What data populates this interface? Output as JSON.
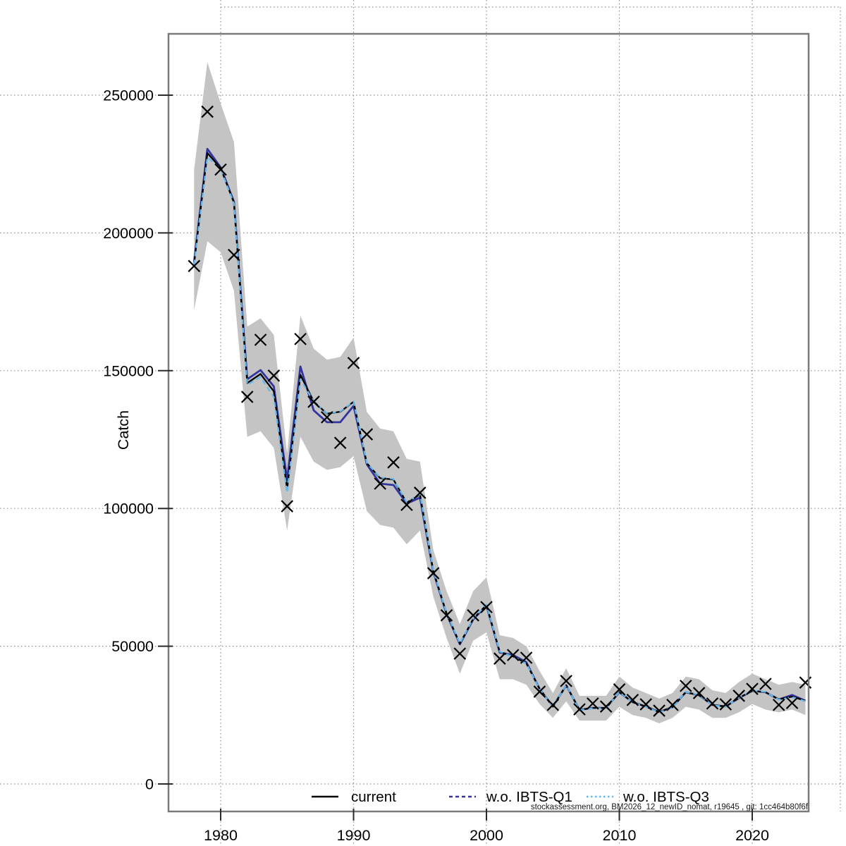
{
  "figure": {
    "background": "#ffffff"
  },
  "footer": {
    "text": "stockassessment.org, BM2026_12_newID_nomat, r19645 , git: 1cc464b80f6f"
  },
  "chart_data": {
    "type": "line",
    "title": "",
    "xlabel": "",
    "ylabel": "Catch",
    "grid": "dotted",
    "legend_position": "bottom-inside",
    "x_tick_labels": [
      "1980",
      "1990",
      "2000",
      "2010",
      "2020"
    ],
    "x_tick_years": [
      1980,
      1990,
      2000,
      2010,
      2020
    ],
    "y_tick_labels": [
      "0",
      "50000",
      "100000",
      "150000",
      "200000",
      "250000"
    ],
    "y_tick_values": [
      0,
      50000,
      100000,
      150000,
      200000,
      250000
    ],
    "ylim": [
      0,
      262000
    ],
    "xlim": [
      1976,
      2026
    ],
    "years": [
      1978,
      1979,
      1980,
      1981,
      1982,
      1983,
      1984,
      1985,
      1986,
      1987,
      1988,
      1989,
      1990,
      1991,
      1992,
      1993,
      1994,
      1995,
      1996,
      1997,
      1998,
      1999,
      2000,
      2001,
      2002,
      2003,
      2004,
      2005,
      2006,
      2007,
      2008,
      2009,
      2010,
      2011,
      2012,
      2013,
      2014,
      2015,
      2016,
      2017,
      2018,
      2019,
      2020,
      2021,
      2022,
      2023,
      2024
    ],
    "observed_marker": "x-cross",
    "observed": [
      188000,
      244000,
      223000,
      192000,
      140500,
      161200,
      148200,
      100800,
      161500,
      138700,
      133100,
      123800,
      152800,
      126900,
      109000,
      116700,
      101300,
      105700,
      76500,
      61200,
      47300,
      61200,
      64200,
      45500,
      46800,
      45800,
      33500,
      28700,
      37400,
      27100,
      29200,
      28100,
      34300,
      30500,
      28900,
      26600,
      28700,
      35600,
      33000,
      29200,
      28900,
      32000,
      34500,
      36300,
      28700,
      29400,
      36800
    ],
    "series": [
      {
        "name": "current",
        "color": "#000000",
        "style": "solid",
        "values": [
          189000,
          229000,
          223500,
          211000,
          145500,
          148800,
          142500,
          107000,
          148500,
          138800,
          134400,
          135100,
          138700,
          116400,
          111000,
          110500,
          102100,
          105000,
          77300,
          61900,
          50900,
          59900,
          65000,
          47900,
          46300,
          43800,
          34500,
          28100,
          35800,
          26900,
          27600,
          27600,
          33300,
          29700,
          28100,
          26100,
          27900,
          33300,
          32200,
          28700,
          28100,
          31200,
          33800,
          33300,
          30700,
          31700,
          30200
        ]
      },
      {
        "name": "w.o. IBTS-Q1",
        "color": "#34349e",
        "style": "dashed",
        "values": [
          189500,
          230500,
          223800,
          211300,
          146900,
          150200,
          144300,
          110500,
          151500,
          135600,
          131300,
          131300,
          137200,
          116000,
          109000,
          108500,
          101800,
          103900,
          77000,
          61700,
          50700,
          59700,
          64800,
          47700,
          46800,
          44200,
          34500,
          28100,
          35800,
          26900,
          27600,
          27600,
          33300,
          29700,
          28100,
          26100,
          27900,
          33300,
          32200,
          28700,
          28100,
          31200,
          33800,
          33300,
          30700,
          32300,
          30200
        ]
      },
      {
        "name": "w.o. IBTS-Q3",
        "color": "#67b7e8",
        "style": "dotted",
        "values": [
          188500,
          227500,
          223200,
          210700,
          144900,
          147700,
          140400,
          105700,
          146900,
          138900,
          134500,
          135200,
          138800,
          116500,
          111200,
          110700,
          102200,
          105200,
          77400,
          62000,
          51000,
          60000,
          65100,
          48000,
          46200,
          43700,
          34500,
          28000,
          35900,
          26800,
          27500,
          27500,
          33400,
          29600,
          28000,
          26000,
          27800,
          33400,
          32300,
          28600,
          28000,
          31300,
          33900,
          33400,
          30600,
          31500,
          30000
        ]
      }
    ],
    "band": {
      "name": "confidence-band",
      "color": "#c4c4c4",
      "lo": [
        172000,
        197000,
        193000,
        179000,
        126000,
        128000,
        122000,
        92000,
        126000,
        117000,
        114000,
        115000,
        119000,
        99000,
        94000,
        93000,
        87000,
        92000,
        68000,
        53000,
        40000,
        52000,
        55000,
        38000,
        38000,
        36000,
        29000,
        24000,
        30000,
        23000,
        23000,
        23000,
        28000,
        25000,
        24000,
        22000,
        24000,
        28000,
        27000,
        24000,
        24000,
        26000,
        29000,
        27000,
        26000,
        27000,
        25000
      ],
      "hi": [
        223000,
        262000,
        247000,
        233000,
        166000,
        169000,
        163000,
        120000,
        170000,
        158000,
        154000,
        155000,
        162000,
        135000,
        129000,
        128000,
        118000,
        117000,
        85000,
        70000,
        58000,
        70000,
        75000,
        54000,
        53000,
        50000,
        41000,
        33000,
        42000,
        32000,
        32000,
        32000,
        39000,
        35000,
        33000,
        31000,
        33000,
        39000,
        38000,
        34000,
        33000,
        37000,
        40000,
        38000,
        36000,
        37000,
        36000
      ]
    }
  }
}
